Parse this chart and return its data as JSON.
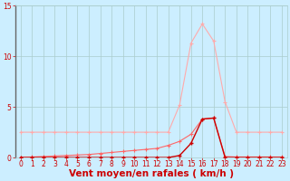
{
  "x": [
    0,
    1,
    2,
    3,
    4,
    5,
    6,
    7,
    8,
    9,
    10,
    11,
    12,
    13,
    14,
    15,
    16,
    17,
    18,
    19,
    20,
    21,
    22,
    23
  ],
  "line_rafales": [
    2.5,
    2.5,
    2.5,
    2.5,
    2.5,
    2.5,
    2.5,
    2.5,
    2.5,
    2.5,
    2.5,
    2.5,
    2.5,
    2.5,
    5.2,
    11.3,
    13.2,
    11.5,
    5.5,
    2.5,
    2.5,
    2.5,
    2.5,
    2.5
  ],
  "line_moyen": [
    0.0,
    0.05,
    0.1,
    0.15,
    0.2,
    0.25,
    0.3,
    0.4,
    0.5,
    0.6,
    0.7,
    0.8,
    0.9,
    1.2,
    1.6,
    2.3,
    3.8,
    3.9,
    0.1,
    0.05,
    0.05,
    0.05,
    0.05,
    0.05
  ],
  "line_freq": [
    0.0,
    0.0,
    0.0,
    0.0,
    0.0,
    0.0,
    0.0,
    0.0,
    0.0,
    0.0,
    0.0,
    0.0,
    0.0,
    0.0,
    0.2,
    1.4,
    3.8,
    3.9,
    0.0,
    0.0,
    0.0,
    0.0,
    0.0,
    0.0
  ],
  "color_rafales": "#ffaaaa",
  "color_moyen": "#ff6666",
  "color_freq": "#cc0000",
  "bg_color": "#cceeff",
  "grid_color": "#aacccc",
  "xlabel": "Vent moyen/en rafales ( km/h )",
  "ylim": [
    0,
    15
  ],
  "xlim": [
    -0.5,
    23.5
  ],
  "yticks": [
    0,
    5,
    10,
    15
  ],
  "xticks": [
    0,
    1,
    2,
    3,
    4,
    5,
    6,
    7,
    8,
    9,
    10,
    11,
    12,
    13,
    14,
    15,
    16,
    17,
    18,
    19,
    20,
    21,
    22,
    23
  ],
  "tick_color": "#cc0000",
  "label_color": "#cc0000",
  "tick_fontsize": 5.5,
  "xlabel_fontsize": 7.5
}
